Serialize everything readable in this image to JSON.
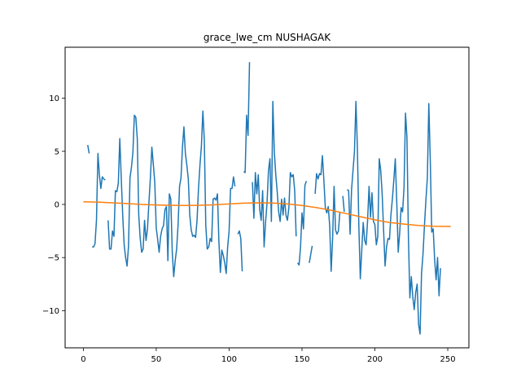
{
  "chart_data": {
    "type": "line",
    "title": "grace_lwe_cm NUSHAGAK",
    "xlabel": "",
    "ylabel": "",
    "xlim": [
      -12.5,
      264.5
    ],
    "ylim": [
      -13.5,
      14.8
    ],
    "xticks": [
      0,
      50,
      100,
      150,
      200,
      250
    ],
    "xtick_labels": [
      "0",
      "50",
      "100",
      "150",
      "200",
      "250"
    ],
    "yticks": [
      -10,
      -5,
      0,
      5,
      10
    ],
    "ytick_labels": [
      "−10",
      "−5",
      "0",
      "5",
      "10"
    ],
    "grid": false,
    "series": [
      {
        "color": "#1f77b4",
        "points": [
          [
            3,
            5.6
          ],
          [
            4,
            4.8
          ],
          [
            null,
            null
          ],
          [
            6,
            -4.0
          ],
          [
            7,
            -4.0
          ],
          [
            8,
            -3.7
          ],
          [
            9,
            -1.5
          ],
          [
            10,
            4.8
          ],
          [
            11,
            2.8
          ],
          [
            12,
            1.5
          ],
          [
            13,
            2.6
          ],
          [
            14,
            2.4
          ],
          [
            15,
            2.3
          ],
          [
            null,
            null
          ],
          [
            17,
            -1.5
          ],
          [
            18,
            -4.2
          ],
          [
            19,
            -4.2
          ],
          [
            20,
            -2.5
          ],
          [
            21,
            -3.0
          ],
          [
            22,
            1.3
          ],
          [
            23,
            1.2
          ],
          [
            24,
            2.0
          ],
          [
            25,
            6.2
          ],
          [
            26,
            2.5
          ],
          [
            27,
            -1.0
          ],
          [
            28,
            -3.8
          ],
          [
            29,
            -5.0
          ],
          [
            30,
            -5.8
          ],
          [
            31,
            -3.9
          ],
          [
            32,
            2.5
          ],
          [
            33,
            3.5
          ],
          [
            34,
            4.9
          ],
          [
            35,
            8.4
          ],
          [
            36,
            8.2
          ],
          [
            37,
            6.2
          ],
          [
            38,
            -1.0
          ],
          [
            39,
            -3.2
          ],
          [
            40,
            -4.5
          ],
          [
            41,
            -4.2
          ],
          [
            42,
            -1.5
          ],
          [
            43,
            -3.4
          ],
          [
            44,
            -2.3
          ],
          [
            45,
            0.2
          ],
          [
            46,
            2.5
          ],
          [
            47,
            5.4
          ],
          [
            48,
            3.8
          ],
          [
            49,
            2.1
          ],
          [
            50,
            -2.2
          ],
          [
            51,
            -3.3
          ],
          [
            52,
            -4.5
          ],
          [
            53,
            -3.0
          ],
          [
            54,
            -2.3
          ],
          [
            55,
            -2.0
          ],
          [
            56,
            -0.5
          ],
          [
            57,
            -0.2
          ],
          [
            58,
            -5.3
          ],
          [
            59,
            1.0
          ],
          [
            60,
            0.5
          ],
          [
            61,
            -4.5
          ],
          [
            62,
            -6.8
          ],
          [
            63,
            -5.3
          ],
          [
            64,
            -4.2
          ],
          [
            65,
            -1.9
          ],
          [
            66,
            1.7
          ],
          [
            67,
            2.5
          ],
          [
            68,
            5.4
          ],
          [
            69,
            7.3
          ],
          [
            70,
            4.8
          ],
          [
            71,
            3.7
          ],
          [
            72,
            2.4
          ],
          [
            73,
            -1.0
          ],
          [
            74,
            -2.4
          ],
          [
            75,
            -3.0
          ],
          [
            76,
            -2.9
          ],
          [
            77,
            -3.1
          ],
          [
            78,
            -1.5
          ],
          [
            79,
            1.5
          ],
          [
            80,
            3.7
          ],
          [
            81,
            5.5
          ],
          [
            82,
            8.8
          ],
          [
            83,
            6.0
          ],
          [
            84,
            -2.0
          ],
          [
            85,
            -4.2
          ],
          [
            86,
            -4.0
          ],
          [
            87,
            -3.2
          ],
          [
            88,
            -3.5
          ],
          [
            89,
            0.5
          ],
          [
            90,
            0.6
          ],
          [
            91,
            0.4
          ],
          [
            92,
            1.0
          ],
          [
            93,
            -3.5
          ],
          [
            94,
            -6.4
          ],
          [
            95,
            -4.3
          ],
          [
            96,
            -4.8
          ],
          [
            97,
            -5.5
          ],
          [
            98,
            -6.5
          ],
          [
            99,
            -4.0
          ],
          [
            100,
            -2.5
          ],
          [
            101,
            1.5
          ],
          [
            102,
            1.5
          ],
          [
            103,
            2.6
          ],
          [
            104,
            1.7
          ],
          [
            null,
            null
          ],
          [
            106,
            -2.8
          ],
          [
            107,
            -2.5
          ],
          [
            108,
            -3.2
          ],
          [
            109,
            -6.3
          ],
          [
            null,
            null
          ],
          [
            110,
            3.1
          ],
          [
            111,
            3.0
          ],
          [
            112,
            8.4
          ],
          [
            113,
            6.5
          ],
          [
            114,
            13.4
          ],
          [
            null,
            null
          ],
          [
            116,
            2.1
          ],
          [
            117,
            -1.3
          ],
          [
            118,
            3.0
          ],
          [
            119,
            1.0
          ],
          [
            120,
            2.8
          ],
          [
            121,
            -0.5
          ],
          [
            122,
            -1.5
          ],
          [
            123,
            1.3
          ],
          [
            124,
            -4.0
          ],
          [
            125,
            -1.7
          ],
          [
            126,
            0.1
          ],
          [
            127,
            3.2
          ],
          [
            128,
            4.3
          ],
          [
            129,
            -1.6
          ],
          [
            130,
            9.7
          ],
          [
            131,
            5.0
          ],
          [
            132,
            2.8
          ],
          [
            133,
            1.2
          ],
          [
            134,
            -0.7
          ],
          [
            135,
            -1.6
          ],
          [
            136,
            0.5
          ],
          [
            137,
            -1.0
          ],
          [
            138,
            0.6
          ],
          [
            139,
            -1.0
          ],
          [
            140,
            -1.5
          ],
          [
            141,
            -0.3
          ],
          [
            142,
            3.0
          ],
          [
            143,
            2.6
          ],
          [
            144,
            2.8
          ],
          [
            145,
            1.3
          ],
          [
            146,
            -3.0
          ],
          [
            null,
            null
          ],
          [
            147,
            -5.5
          ],
          [
            148,
            -5.7
          ],
          [
            149,
            -4.0
          ],
          [
            150,
            -0.8
          ],
          [
            151,
            -2.3
          ],
          [
            152,
            1.8
          ],
          [
            153,
            2.2
          ],
          [
            null,
            null
          ],
          [
            155,
            -5.5
          ],
          [
            156,
            -4.7
          ],
          [
            157,
            -3.9
          ],
          [
            null,
            null
          ],
          [
            159,
            1.0
          ],
          [
            160,
            2.9
          ],
          [
            161,
            2.4
          ],
          [
            162,
            2.9
          ],
          [
            163,
            2.8
          ],
          [
            164,
            4.6
          ],
          [
            165,
            2.3
          ],
          [
            166,
            -0.3
          ],
          [
            167,
            -0.8
          ],
          [
            168,
            -0.2
          ],
          [
            169,
            -2.0
          ],
          [
            170,
            -6.3
          ],
          [
            171,
            -3.2
          ],
          [
            172,
            1.7
          ],
          [
            173,
            -2.4
          ],
          [
            174,
            -2.8
          ],
          [
            175,
            -2.5
          ],
          [
            176,
            -0.7
          ],
          [
            null,
            null
          ],
          [
            178,
            0.8
          ],
          [
            179,
            -0.7
          ],
          [
            null,
            null
          ],
          [
            181,
            1.4
          ],
          [
            182,
            1.3
          ],
          [
            183,
            -2.8
          ],
          [
            184,
            1.4
          ],
          [
            185,
            3.2
          ],
          [
            186,
            5.0
          ],
          [
            187,
            9.7
          ],
          [
            188,
            5.3
          ],
          [
            189,
            -2.0
          ],
          [
            190,
            -7.0
          ],
          [
            191,
            -4.3
          ],
          [
            192,
            -1.7
          ],
          [
            193,
            -3.4
          ],
          [
            194,
            -3.8
          ],
          [
            195,
            -1.5
          ],
          [
            196,
            1.7
          ],
          [
            197,
            -1.2
          ],
          [
            198,
            1.1
          ],
          [
            199,
            -1.6
          ],
          [
            200,
            -1.9
          ],
          [
            201,
            -3.8
          ],
          [
            202,
            -3.0
          ],
          [
            203,
            4.3
          ],
          [
            204,
            3.2
          ],
          [
            205,
            1.0
          ],
          [
            206,
            -2.5
          ],
          [
            207,
            -5.8
          ],
          [
            208,
            -4.0
          ],
          [
            209,
            -3.2
          ],
          [
            210,
            -3.3
          ],
          [
            211,
            -1.0
          ],
          [
            212,
            0.5
          ],
          [
            213,
            2.3
          ],
          [
            214,
            4.3
          ],
          [
            215,
            0.3
          ],
          [
            216,
            -4.5
          ],
          [
            217,
            -2.7
          ],
          [
            218,
            -0.3
          ],
          [
            219,
            -0.7
          ],
          [
            220,
            1.6
          ],
          [
            221,
            8.6
          ],
          [
            222,
            6.3
          ],
          [
            223,
            -3.0
          ],
          [
            224,
            -8.8
          ],
          [
            225,
            -6.8
          ],
          [
            226,
            -8.7
          ],
          [
            227,
            -9.9
          ],
          [
            228,
            -8.3
          ],
          [
            229,
            -7.5
          ],
          [
            230,
            -11.3
          ],
          [
            231,
            -12.2
          ],
          [
            232,
            -6.5
          ],
          [
            233,
            -4.7
          ],
          [
            234,
            -2.0
          ],
          [
            235,
            0.4
          ],
          [
            236,
            2.5
          ],
          [
            237,
            9.5
          ],
          [
            238,
            4.2
          ],
          [
            239,
            -2.6
          ],
          [
            240,
            -2.3
          ],
          [
            241,
            -5.2
          ],
          [
            242,
            -7.1
          ],
          [
            243,
            -5.0
          ],
          [
            244,
            -8.6
          ],
          [
            245,
            -6.0
          ]
        ]
      },
      {
        "color": "#ff7f0e",
        "points": [
          [
            0,
            0.25
          ],
          [
            10,
            0.22
          ],
          [
            20,
            0.15
          ],
          [
            30,
            0.08
          ],
          [
            40,
            0.0
          ],
          [
            50,
            -0.05
          ],
          [
            60,
            -0.08
          ],
          [
            70,
            -0.1
          ],
          [
            80,
            -0.08
          ],
          [
            90,
            -0.03
          ],
          [
            100,
            0.05
          ],
          [
            110,
            0.12
          ],
          [
            120,
            0.15
          ],
          [
            130,
            0.13
          ],
          [
            140,
            0.05
          ],
          [
            150,
            -0.1
          ],
          [
            160,
            -0.3
          ],
          [
            170,
            -0.55
          ],
          [
            180,
            -0.85
          ],
          [
            190,
            -1.15
          ],
          [
            200,
            -1.45
          ],
          [
            210,
            -1.7
          ],
          [
            220,
            -1.85
          ],
          [
            230,
            -1.98
          ],
          [
            240,
            -2.05
          ],
          [
            250,
            -2.07
          ],
          [
            252,
            -2.07
          ]
        ]
      }
    ]
  }
}
